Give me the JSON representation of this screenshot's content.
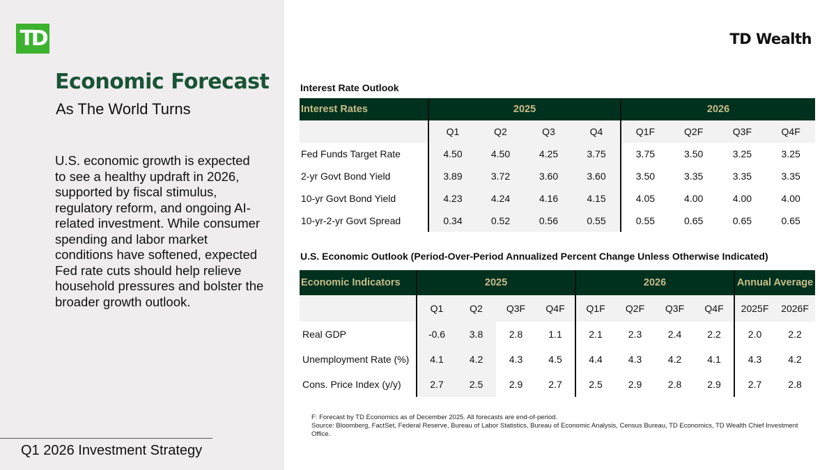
{
  "left": {
    "logo": "TD",
    "title": "Economic Forecast",
    "subtitle": "As The World Turns",
    "body": "U.S. economic growth is expected to see a healthy updraft in 2026, supported by fiscal stimulus, regulatory reform, and ongoing AI-related investment. While consumer spending and labor market conditions have softened, expected Fed rate cuts should help relieve household pressures and bolster the broader growth outlook.",
    "footer": "Q1 2026 Investment Strategy"
  },
  "brand": "TD Wealth",
  "colors": {
    "header_bg": "#00311e",
    "header_text": "#c8bd8a",
    "title_green": "#1a5336",
    "logo_green": "#3db22f"
  },
  "interest": {
    "title": "Interest Rate Outlook",
    "header": [
      "Interest Rates",
      "2025",
      "2026"
    ],
    "subheader": [
      "Q1",
      "Q2",
      "Q3",
      "Q4",
      "Q1F",
      "Q2F",
      "Q3F",
      "Q4F"
    ],
    "rows": [
      {
        "label": "Fed Funds Target Rate",
        "values": [
          "4.50",
          "4.50",
          "4.25",
          "3.75",
          "3.75",
          "3.50",
          "3.25",
          "3.25"
        ]
      },
      {
        "label": "2-yr Govt Bond Yield",
        "values": [
          "3.89",
          "3.72",
          "3.60",
          "3.60",
          "3.50",
          "3.35",
          "3.35",
          "3.35"
        ]
      },
      {
        "label": "10-yr Govt Bond Yield",
        "values": [
          "4.23",
          "4.24",
          "4.16",
          "4.15",
          "4.05",
          "4.00",
          "4.00",
          "4.00"
        ]
      },
      {
        "label": "10-yr-2-yr Govt Spread",
        "values": [
          "0.34",
          "0.52",
          "0.56",
          "0.55",
          "0.55",
          "0.65",
          "0.65",
          "0.65"
        ]
      }
    ]
  },
  "economic": {
    "title": "U.S. Economic Outlook (Period-Over-Period Annualized Percent Change Unless Otherwise Indicated)",
    "header": [
      "Economic Indicators",
      "2025",
      "2026",
      "Annual Average"
    ],
    "subheader": [
      "Q1",
      "Q2",
      "Q3F",
      "Q4F",
      "Q1F",
      "Q2F",
      "Q3F",
      "Q4F",
      "2025F",
      "2026F"
    ],
    "rows": [
      {
        "label": "Real GDP",
        "values": [
          "-0.6",
          "3.8",
          "2.8",
          "1.1",
          "2.1",
          "2.3",
          "2.4",
          "2.2",
          "2.0",
          "2.2"
        ]
      },
      {
        "label": "Unemployment Rate (%)",
        "values": [
          "4.1",
          "4.2",
          "4.3",
          "4.5",
          "4.4",
          "4.3",
          "4.2",
          "4.1",
          "4.3",
          "4.2"
        ]
      },
      {
        "label": "Cons. Price Index (y/y)",
        "values": [
          "2.7",
          "2.5",
          "2.9",
          "2.7",
          "2.5",
          "2.9",
          "2.8",
          "2.9",
          "2.7",
          "2.8"
        ]
      }
    ]
  },
  "notes": [
    "F: Forecast by TD Economics as of December 2025. All forecasts are end-of-period.",
    "Source: Bloomberg, FactSet, Federal Reserve, Bureau of Labor Statistics, Bureau of Economic Analysis, Census Bureau, TD Economics, TD Wealth Chief Investment Office."
  ]
}
